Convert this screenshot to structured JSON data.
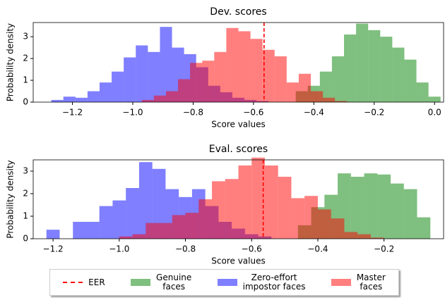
{
  "legend": [
    "EER",
    "Genuine\nfaces",
    "Zero-effort\nimpostor faces",
    "Master\nfaces"
  ],
  "chart_data": [
    {
      "type": "histogram",
      "title": "Dev. scores",
      "xlabel": "Score values",
      "ylabel": "Probability density",
      "xlim": [
        -1.33,
        0.03
      ],
      "ylim": [
        0,
        3.65
      ],
      "xticks": [
        {
          "value": -1.2,
          "label": "−1.2"
        },
        {
          "value": -1.0,
          "label": "−1.0"
        },
        {
          "value": -0.8,
          "label": "−0.8"
        },
        {
          "value": -0.6,
          "label": "−0.6"
        },
        {
          "value": -0.4,
          "label": "−0.4"
        },
        {
          "value": -0.2,
          "label": "−0.2"
        },
        {
          "value": 0,
          "label": "0.0"
        }
      ],
      "yticks": [
        0,
        1,
        2,
        3
      ],
      "eer": {
        "value": -0.565,
        "color": "#ff0000"
      },
      "series": [
        {
          "color": "#008000",
          "bins": [
            -0.46,
            -0.42,
            -0.38,
            -0.34,
            -0.3,
            -0.26,
            -0.22,
            -0.18,
            -0.14,
            -0.1,
            -0.06,
            -0.02,
            0.02
          ],
          "values": [
            0.5,
            0.75,
            1.4,
            2.1,
            3.1,
            3.6,
            3.3,
            3.0,
            2.5,
            1.95,
            0.9,
            0.25
          ]
        },
        {
          "color": "#0000ff",
          "bins": [
            -1.27,
            -1.23,
            -1.19,
            -1.15,
            -1.11,
            -1.07,
            -1.03,
            -0.99,
            -0.95,
            -0.91,
            -0.87,
            -0.83,
            -0.79,
            -0.75,
            -0.71,
            -0.67,
            -0.63,
            -0.59,
            -0.55
          ],
          "values": [
            0.1,
            0.25,
            0.2,
            0.5,
            0.9,
            1.4,
            2.05,
            2.6,
            2.3,
            3.45,
            2.5,
            2.2,
            1.6,
            0.75,
            0.45,
            0.2,
            0.1,
            0.05
          ]
        },
        {
          "color": "#ff0000",
          "bins": [
            -0.97,
            -0.93,
            -0.89,
            -0.85,
            -0.81,
            -0.77,
            -0.73,
            -0.69,
            -0.65,
            -0.61,
            -0.57,
            -0.53,
            -0.49,
            -0.45,
            -0.41,
            -0.37,
            -0.33,
            -0.29
          ],
          "values": [
            0.1,
            0.3,
            0.5,
            1.05,
            1.8,
            1.9,
            2.3,
            3.4,
            3.25,
            2.9,
            2.4,
            2.1,
            0.9,
            1.3,
            0.5,
            0.2,
            0.05
          ]
        }
      ]
    },
    {
      "type": "histogram",
      "title": "Eval. scores",
      "xlabel": "Score values",
      "ylabel": "Probability density",
      "xlim": [
        -1.26,
        -0.02
      ],
      "ylim": [
        0,
        3.5
      ],
      "xticks": [
        {
          "value": -1.2,
          "label": "−1.2"
        },
        {
          "value": -1.0,
          "label": "−1.0"
        },
        {
          "value": -0.8,
          "label": "−0.8"
        },
        {
          "value": -0.6,
          "label": "−0.6"
        },
        {
          "value": -0.4,
          "label": "−0.4"
        },
        {
          "value": -0.2,
          "label": "−0.2"
        }
      ],
      "yticks": [
        0,
        1,
        2,
        3
      ],
      "eer": {
        "value": -0.565,
        "color": "#ff0000"
      },
      "series": [
        {
          "color": "#008000",
          "bins": [
            -0.46,
            -0.42,
            -0.38,
            -0.34,
            -0.3,
            -0.26,
            -0.22,
            -0.18,
            -0.14,
            -0.1,
            -0.06
          ],
          "values": [
            0.6,
            1.4,
            1.95,
            2.9,
            2.75,
            2.9,
            2.85,
            2.45,
            2.2,
            0.95
          ]
        },
        {
          "color": "#0000ff",
          "bins": [
            -1.22,
            -1.18,
            -1.14,
            -1.1,
            -1.06,
            -1.02,
            -0.98,
            -0.94,
            -0.9,
            -0.86,
            -0.82,
            -0.78,
            -0.74,
            -0.7,
            -0.66,
            -0.62,
            -0.58,
            -0.54
          ],
          "values": [
            0.4,
            0,
            0.75,
            0.75,
            1.45,
            1.7,
            2.25,
            3.4,
            3.1,
            2.2,
            1.85,
            2.2,
            1.45,
            0.75,
            0.45,
            0.2,
            0.1
          ]
        },
        {
          "color": "#ff0000",
          "bins": [
            -1.0,
            -0.96,
            -0.92,
            -0.88,
            -0.84,
            -0.8,
            -0.76,
            -0.72,
            -0.68,
            -0.64,
            -0.6,
            -0.56,
            -0.52,
            -0.48,
            -0.44,
            -0.4,
            -0.36,
            -0.32,
            -0.28,
            -0.24,
            -0.2
          ],
          "values": [
            0.1,
            0.2,
            0.7,
            0.7,
            1.05,
            1.15,
            1.75,
            2.55,
            2.65,
            3.25,
            3.6,
            3.25,
            2.75,
            1.8,
            1.9,
            1.3,
            0.9,
            0.3,
            0.2,
            0.05
          ]
        }
      ]
    }
  ]
}
